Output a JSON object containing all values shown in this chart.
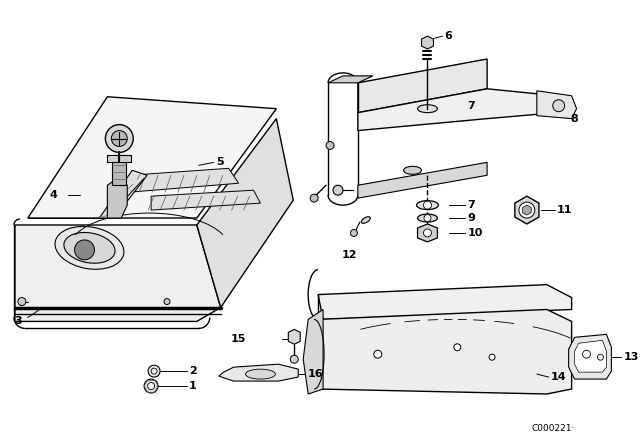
{
  "background_color": "#ffffff",
  "line_color": "#000000",
  "catalog_number": "C000221·"
}
